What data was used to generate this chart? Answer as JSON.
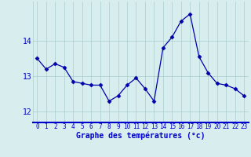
{
  "hours": [
    0,
    1,
    2,
    3,
    4,
    5,
    6,
    7,
    8,
    9,
    10,
    11,
    12,
    13,
    14,
    15,
    16,
    17,
    18,
    19,
    20,
    21,
    22,
    23
  ],
  "temps": [
    13.5,
    13.2,
    13.35,
    13.25,
    12.85,
    12.8,
    12.75,
    12.75,
    12.3,
    12.45,
    12.75,
    12.95,
    12.65,
    12.3,
    13.8,
    14.1,
    14.55,
    14.75,
    13.55,
    13.1,
    12.8,
    12.75,
    12.65,
    12.45
  ],
  "line_color": "#0000aa",
  "marker": "D",
  "marker_size": 2.5,
  "bg_color": "#d8eeee",
  "grid_color": "#aacccc",
  "xlabel": "Graphe des températures (°c)",
  "xlabel_color": "#0000cc",
  "xlabel_fontsize": 7,
  "tick_color": "#0000cc",
  "tick_fontsize": 5.5,
  "ytick_fontsize": 7,
  "ylim": [
    11.7,
    15.1
  ],
  "yticks": [
    12,
    13,
    14
  ],
  "figsize": [
    3.2,
    2.0
  ],
  "dpi": 100
}
